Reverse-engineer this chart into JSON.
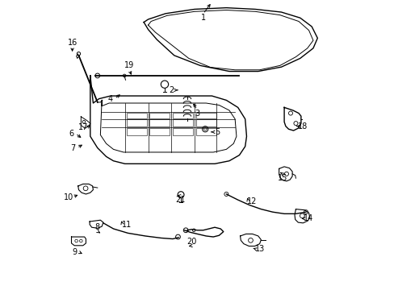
{
  "background_color": "#ffffff",
  "label_positions": {
    "1": [
      0.52,
      0.94,
      0.03,
      0.055
    ],
    "2": [
      0.41,
      0.69,
      0.03,
      0.0
    ],
    "3": [
      0.5,
      0.61,
      -0.02,
      0.04
    ],
    "4": [
      0.2,
      0.66,
      0.04,
      0.02
    ],
    "5": [
      0.57,
      0.545,
      -0.03,
      0.0
    ],
    "6": [
      0.065,
      0.54,
      0.04,
      -0.02
    ],
    "7": [
      0.07,
      0.49,
      0.04,
      0.015
    ],
    "8": [
      0.155,
      0.215,
      0.01,
      -0.02
    ],
    "9": [
      0.075,
      0.13,
      0.035,
      -0.01
    ],
    "10": [
      0.055,
      0.32,
      0.04,
      0.01
    ],
    "11": [
      0.255,
      0.225,
      -0.02,
      0.02
    ],
    "12": [
      0.69,
      0.305,
      -0.02,
      0.02
    ],
    "13": [
      0.715,
      0.14,
      -0.03,
      0.005
    ],
    "14": [
      0.885,
      0.245,
      -0.025,
      0.0
    ],
    "15": [
      0.795,
      0.385,
      -0.015,
      0.025
    ],
    "16": [
      0.068,
      0.855,
      0.0,
      -0.04
    ],
    "17": [
      0.105,
      0.56,
      0.025,
      0.01
    ],
    "18": [
      0.865,
      0.565,
      -0.03,
      0.0
    ],
    "19": [
      0.265,
      0.775,
      0.01,
      -0.04
    ],
    "20": [
      0.48,
      0.165,
      -0.01,
      -0.015
    ],
    "21": [
      0.44,
      0.31,
      -0.01,
      0.015
    ]
  }
}
